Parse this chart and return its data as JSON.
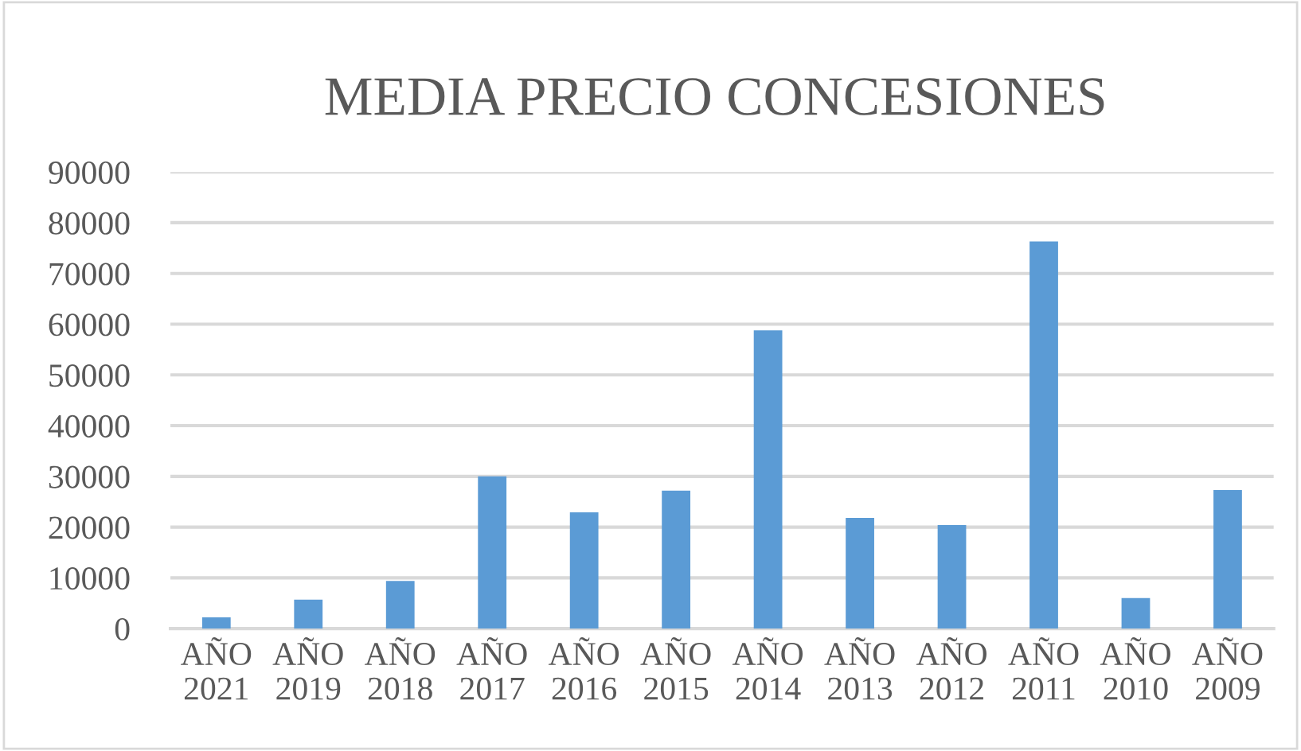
{
  "chart_data": {
    "type": "bar",
    "title": "MEDIA PRECIO CONCESIONES",
    "categories": [
      "AÑO\n2021",
      "AÑO\n2019",
      "AÑO\n2018",
      "AÑO\n2017",
      "AÑO\n2016",
      "AÑO\n2015",
      "AÑO\n2014",
      "AÑO\n2013",
      "AÑO\n2012",
      "AÑO\n2011",
      "AÑO\n2010",
      "AÑO\n2009"
    ],
    "values": [
      2200,
      5700,
      9400,
      30000,
      22900,
      27200,
      58800,
      21800,
      20400,
      76300,
      6000,
      27300
    ],
    "color": "#5b9bd5",
    "ylim": [
      0,
      90000
    ],
    "yticks": [
      0,
      10000,
      20000,
      30000,
      40000,
      50000,
      60000,
      70000,
      80000,
      90000
    ],
    "grid": "y",
    "legend": false
  }
}
